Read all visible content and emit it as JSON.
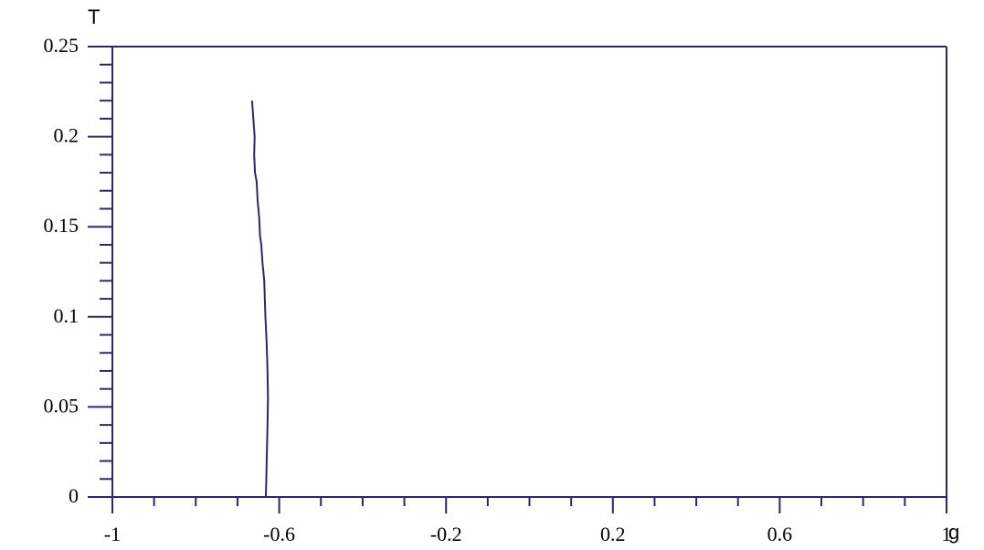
{
  "chart_data": {
    "type": "line",
    "title": "",
    "xlabel": "g",
    "ylabel": "T",
    "xlim": [
      -1,
      1
    ],
    "ylim": [
      0,
      0.25
    ],
    "grid": false,
    "x_tick_labels": [
      "-1",
      "-0.6",
      "-0.2",
      "0.2",
      "0.6",
      "1"
    ],
    "x_tick_values": [
      -1,
      -0.6,
      -0.2,
      0.2,
      0.6,
      1
    ],
    "y_tick_labels": [
      "0",
      "0.05",
      "0.1",
      "0.15",
      "0.2",
      "0.25"
    ],
    "y_tick_values": [
      0,
      0.05,
      0.1,
      0.15,
      0.2,
      0.25
    ],
    "x_minor_step": 0.1,
    "y_minor_step": 0.01,
    "series": [
      {
        "color": "#2b2866",
        "points": [
          [
            -0.632,
            0.0
          ],
          [
            -0.63,
            0.02
          ],
          [
            -0.628,
            0.04
          ],
          [
            -0.627,
            0.055
          ],
          [
            -0.628,
            0.07
          ],
          [
            -0.63,
            0.085
          ],
          [
            -0.633,
            0.1
          ],
          [
            -0.636,
            0.12
          ],
          [
            -0.64,
            0.13
          ],
          [
            -0.643,
            0.14
          ],
          [
            -0.646,
            0.145
          ],
          [
            -0.648,
            0.155
          ],
          [
            -0.652,
            0.165
          ],
          [
            -0.654,
            0.175
          ],
          [
            -0.658,
            0.18
          ],
          [
            -0.66,
            0.19
          ],
          [
            -0.659,
            0.2
          ],
          [
            -0.662,
            0.21
          ],
          [
            -0.665,
            0.22
          ]
        ]
      }
    ]
  }
}
